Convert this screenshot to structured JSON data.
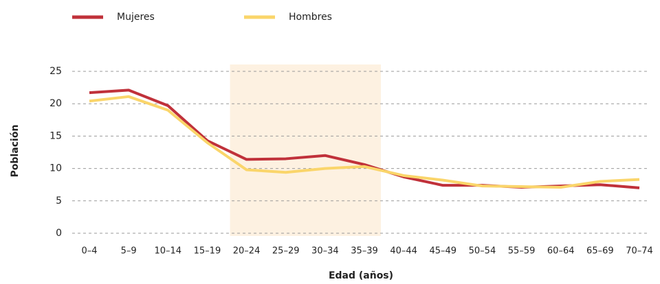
{
  "chart_data": {
    "type": "line",
    "xlabel": "Edad (años)",
    "ylabel": "Población",
    "categories": [
      "0–4",
      "5–9",
      "10–14",
      "15–19",
      "20–24",
      "25–29",
      "30–34",
      "35–39",
      "40–44",
      "45–49",
      "50–54",
      "55–59",
      "60–64",
      "65–69",
      "70–74"
    ],
    "series": [
      {
        "name": "Mujeres",
        "color": "#c0313a",
        "values": [
          21.7,
          22.1,
          19.7,
          14.3,
          11.4,
          11.5,
          12.0,
          10.6,
          8.7,
          7.4,
          7.4,
          7.1,
          7.3,
          7.5,
          7.0
        ]
      },
      {
        "name": "Hombres",
        "color": "#fad56a",
        "values": [
          20.4,
          21.1,
          19.0,
          14.0,
          9.8,
          9.4,
          10.0,
          10.3,
          8.9,
          8.2,
          7.3,
          7.2,
          7.1,
          8.0,
          8.3
        ]
      }
    ],
    "highlight": {
      "from": "20–24",
      "to": "35–39",
      "color": "#fdf1e1"
    },
    "ylim": [
      0,
      25
    ],
    "yticks": [
      0,
      5,
      10,
      15,
      20,
      25
    ],
    "grid": true,
    "legend": "top-left"
  }
}
